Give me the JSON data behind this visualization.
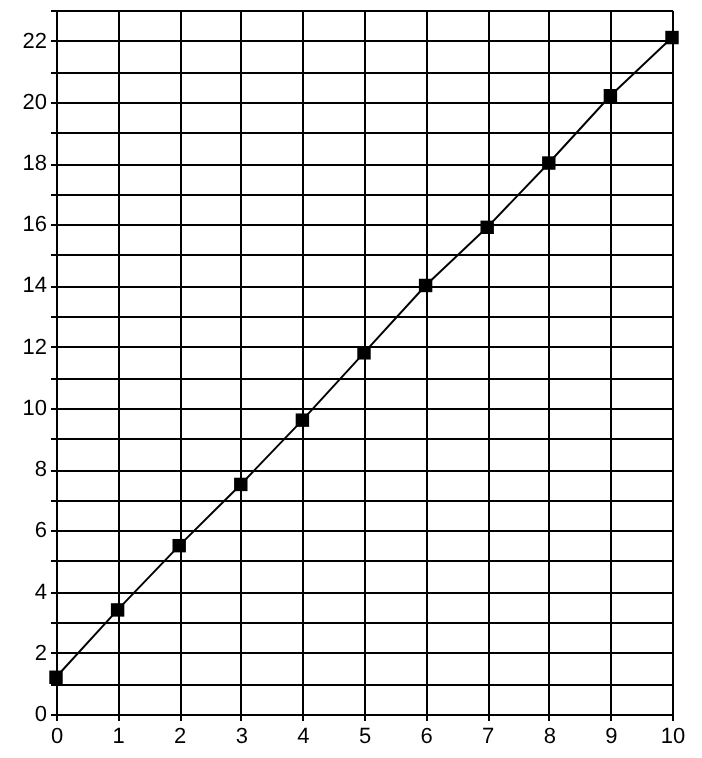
{
  "chart_data": {
    "type": "line",
    "x": [
      0,
      1,
      2,
      3,
      4,
      5,
      6,
      7,
      8,
      9,
      10
    ],
    "series": [
      {
        "color": "#000000",
        "values": [
          1.2,
          3.4,
          5.5,
          7.5,
          9.6,
          11.8,
          14.0,
          15.9,
          18.0,
          20.2,
          22.1
        ]
      }
    ],
    "xlim": [
      0,
      10
    ],
    "xticks": [
      0,
      1,
      2,
      3,
      4,
      5,
      6,
      7,
      8,
      9,
      10
    ],
    "ylim": [
      0,
      23
    ],
    "yticks": [
      0,
      {
        "value": 1,
        "label": null
      },
      2,
      {
        "value": 3,
        "label": null
      },
      4,
      {
        "value": 5,
        "label": null
      },
      6,
      {
        "value": 7,
        "label": null
      },
      8,
      {
        "value": 9,
        "label": null
      },
      10,
      {
        "value": 11,
        "label": null
      },
      12,
      {
        "value": 13,
        "label": null
      },
      14,
      {
        "value": 15,
        "label": null
      },
      16,
      {
        "value": 17,
        "label": null
      },
      18,
      {
        "value": 19,
        "label": null
      },
      20,
      {
        "value": 21,
        "label": null
      },
      22,
      {
        "value": 23,
        "label": null
      }
    ],
    "grid": true,
    "marker": "square",
    "line_style": "solid"
  }
}
